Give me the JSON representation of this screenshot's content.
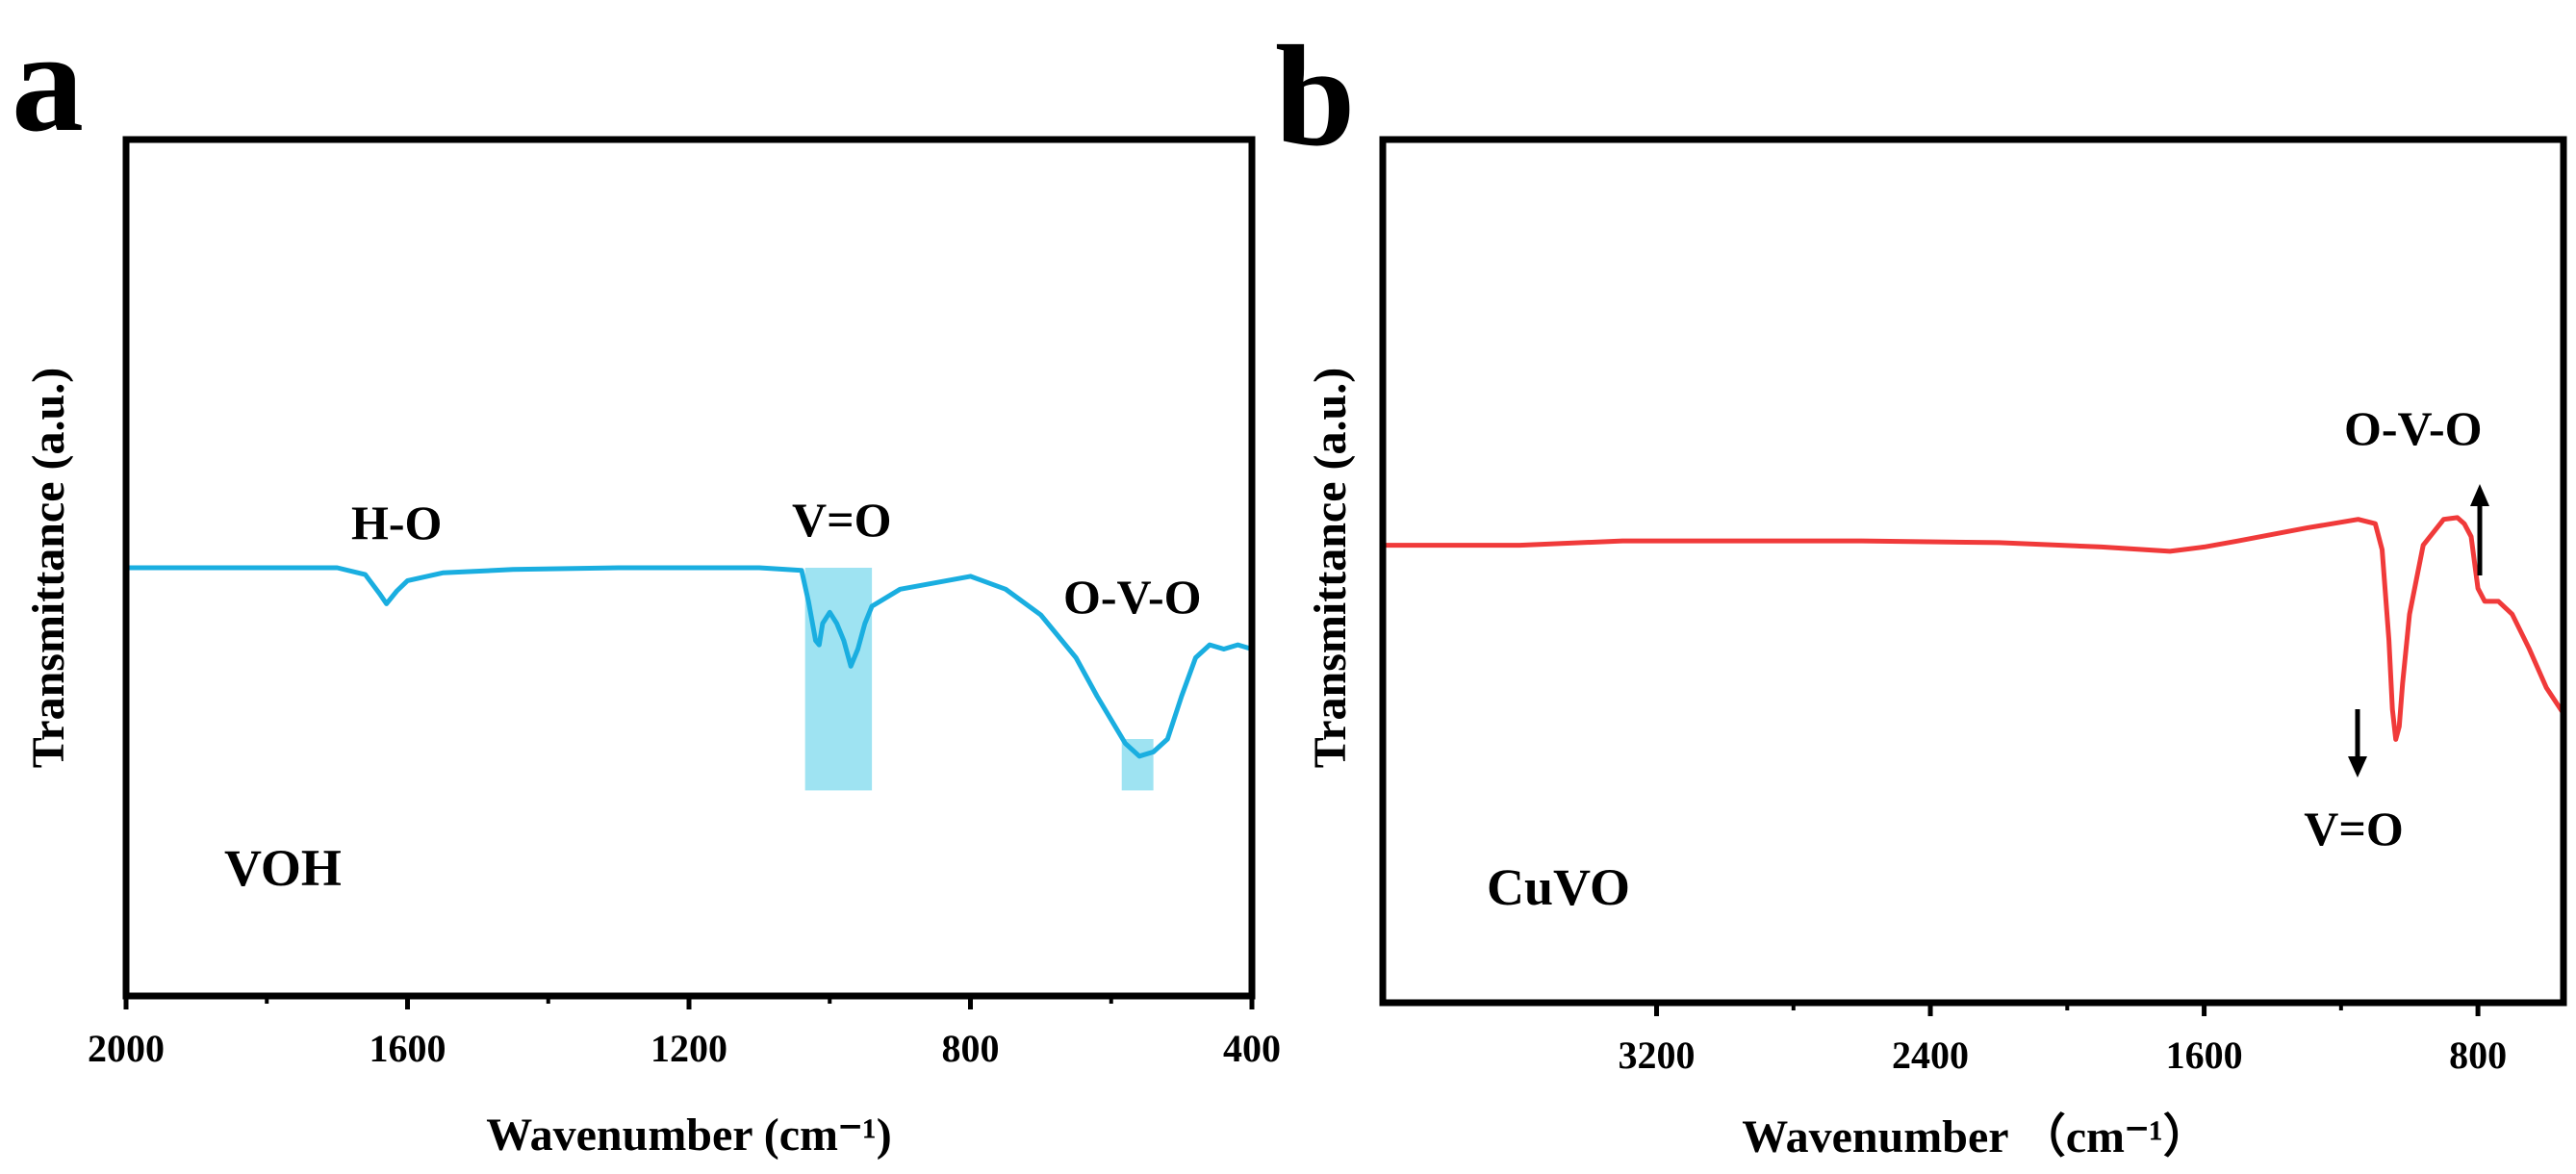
{
  "chart_data": [
    {
      "panel": "a",
      "type": "line",
      "sample": "VOH",
      "xlabel": "Wavenumber (cm⁻¹)",
      "ylabel": "Transmittance (a.u.)",
      "xlim": [
        2000,
        400
      ],
      "ylim": [
        0,
        100
      ],
      "xticks": [
        2000,
        1600,
        1200,
        800,
        400
      ],
      "color": "#1aaee0",
      "highlight_color": "#9ee3f2",
      "series": [
        {
          "name": "VOH",
          "x": [
            2000,
            1700,
            1660,
            1640,
            1630,
            1615,
            1600,
            1550,
            1450,
            1300,
            1200,
            1100,
            1040,
            1030,
            1020,
            1015,
            1010,
            1000,
            990,
            980,
            970,
            960,
            950,
            940,
            900,
            800,
            750,
            700,
            650,
            620,
            580,
            560,
            540,
            520,
            500,
            480,
            460,
            440,
            420,
            400
          ],
          "y": [
            50.0,
            50.0,
            49.2,
            47.0,
            45.8,
            47.3,
            48.5,
            49.4,
            49.8,
            50.0,
            50.0,
            50.0,
            49.7,
            46.0,
            41.5,
            41.0,
            43.5,
            44.8,
            43.5,
            41.5,
            38.5,
            40.5,
            43.5,
            45.5,
            47.5,
            49.0,
            47.5,
            44.5,
            39.5,
            35.0,
            29.5,
            28.0,
            28.5,
            30.0,
            35.0,
            39.5,
            41.0,
            40.5,
            41.0,
            40.5
          ]
        }
      ],
      "annotations": [
        "H-O",
        "V=O",
        "O-V-O"
      ],
      "highlights": [
        {
          "label": "V=O",
          "x_range": [
            1035,
            940
          ],
          "y_range": [
            24,
            50
          ]
        },
        {
          "label": "O-V-O",
          "x_range": [
            585,
            540
          ],
          "y_range": [
            24,
            30
          ]
        }
      ]
    },
    {
      "panel": "b",
      "type": "line",
      "sample": "CuVO",
      "xlabel": "Wavenumber  （cm⁻¹）",
      "ylabel": "Transmittance (a.u.)",
      "xlim": [
        4000,
        550
      ],
      "ylim": [
        0,
        100
      ],
      "xticks": [
        3200,
        2400,
        1600,
        800
      ],
      "color": "#f03a3a",
      "series": [
        {
          "name": "CuVO",
          "x": [
            4000,
            3600,
            3300,
            3000,
            2600,
            2200,
            1900,
            1700,
            1600,
            1500,
            1300,
            1150,
            1100,
            1080,
            1060,
            1050,
            1040,
            1030,
            1020,
            1000,
            960,
            900,
            860,
            840,
            820,
            800,
            780,
            760,
            740,
            700,
            650,
            600,
            550
          ],
          "y": [
            53.0,
            53.0,
            53.5,
            53.5,
            53.5,
            53.3,
            52.8,
            52.3,
            52.8,
            53.5,
            55.0,
            56.0,
            55.5,
            52.5,
            42.0,
            34.0,
            30.5,
            32.0,
            37.0,
            45.0,
            53.0,
            56.0,
            56.2,
            55.5,
            54.0,
            48.0,
            46.5,
            46.5,
            46.5,
            45.0,
            41.0,
            36.5,
            33.5
          ]
        }
      ],
      "annotations": [
        "V=O",
        "O-V-O"
      ]
    }
  ]
}
